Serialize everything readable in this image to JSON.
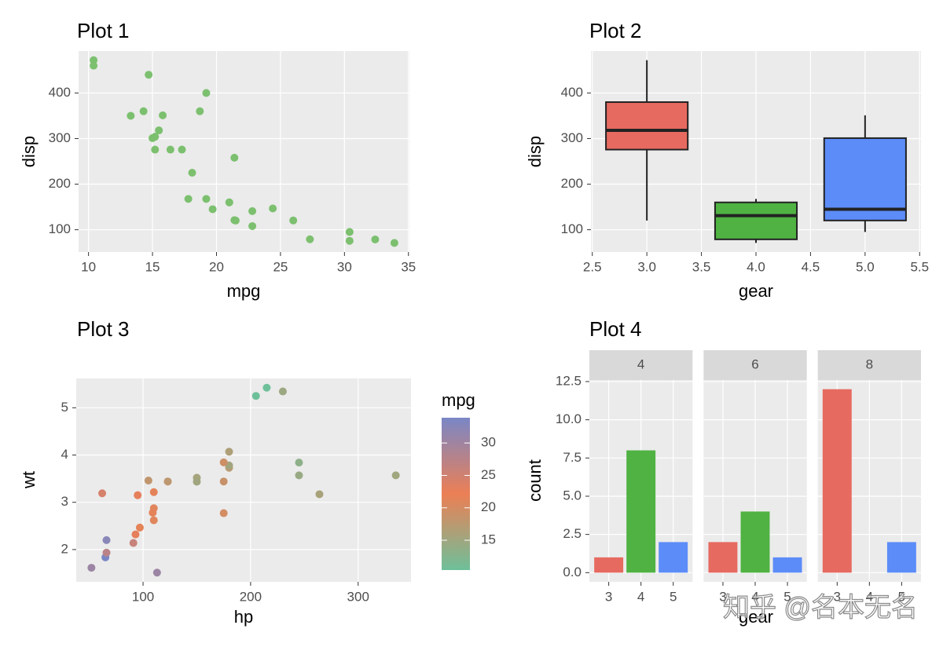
{
  "chart_data": [
    {
      "type": "scatter",
      "title": "Plot 1",
      "x_label": "mpg",
      "y_label": "disp",
      "color": "#7cc06f",
      "x": [
        21,
        21,
        22.8,
        21.4,
        18.7,
        18.1,
        14.3,
        24.4,
        22.8,
        19.2,
        17.8,
        16.4,
        17.3,
        15.2,
        10.4,
        10.4,
        14.7,
        32.4,
        30.4,
        33.9,
        21.5,
        15.5,
        15.2,
        13.3,
        19.2,
        27.3,
        26,
        30.4,
        15.8,
        19.7,
        15,
        21.4
      ],
      "y": [
        160,
        160,
        108,
        258,
        360,
        225,
        360,
        146.7,
        140.8,
        167.6,
        167.6,
        275.8,
        275.8,
        275.8,
        472,
        460,
        440,
        78.7,
        75.7,
        71.1,
        120.1,
        318,
        304,
        350,
        400,
        79,
        120.3,
        95.1,
        351,
        145,
        301,
        121
      ],
      "xlim": [
        9.225,
        35.075
      ],
      "xticks": [
        10,
        15,
        20,
        25,
        30,
        35
      ],
      "ylim": [
        51.05,
        492.05
      ],
      "yticks": [
        100,
        200,
        300,
        400
      ],
      "grid": true
    },
    {
      "type": "box",
      "title": "Plot 2",
      "x_label": "gear",
      "y_label": "disp",
      "x": [
        3,
        4,
        5
      ],
      "colors": [
        "#e66a60",
        "#4fb242",
        "#5c8cf8"
      ],
      "min": [
        120.1,
        71.1,
        95.1
      ],
      "q1": [
        275.8,
        78.925,
        120.3
      ],
      "median": [
        318,
        130.9,
        145
      ],
      "q3": [
        380,
        160,
        301
      ],
      "max": [
        472,
        167.6,
        351
      ],
      "xlim": [
        2.4875,
        5.5125
      ],
      "xticks": [
        {
          "value": 2.5,
          "label": "2.5"
        },
        {
          "value": 3,
          "label": "3.0"
        },
        {
          "value": 3.5,
          "label": "3.5"
        },
        {
          "value": 4,
          "label": "4.0"
        },
        {
          "value": 4.5,
          "label": "4.5"
        },
        {
          "value": 5,
          "label": "5.0"
        },
        {
          "value": 5.5,
          "label": "5.5"
        }
      ],
      "ylim": [
        51.05,
        492.05
      ],
      "yticks": [
        100,
        200,
        300,
        400
      ],
      "grid": true
    },
    {
      "type": "scatter",
      "title": "Plot 3",
      "x_label": "hp",
      "y_label": "wt",
      "color_label": "mpg",
      "x": [
        110,
        110,
        93,
        110,
        175,
        105,
        245,
        62,
        95,
        123,
        123,
        180,
        180,
        180,
        205,
        215,
        230,
        66,
        52,
        65,
        97,
        150,
        150,
        245,
        175,
        66,
        91,
        113,
        264,
        175,
        335,
        109
      ],
      "y": [
        2.62,
        2.875,
        2.32,
        3.215,
        3.44,
        3.46,
        3.57,
        3.19,
        3.15,
        3.44,
        3.44,
        4.07,
        3.73,
        3.78,
        5.25,
        5.424,
        5.345,
        2.2,
        1.615,
        1.835,
        2.465,
        3.52,
        3.435,
        3.84,
        3.845,
        1.935,
        2.14,
        1.513,
        3.17,
        2.77,
        3.57,
        2.78
      ],
      "color_values": [
        21,
        21,
        22.8,
        21.4,
        18.7,
        18.1,
        14.3,
        24.4,
        22.8,
        19.2,
        17.8,
        16.4,
        17.3,
        15.2,
        10.4,
        10.4,
        14.7,
        32.4,
        30.4,
        33.9,
        21.5,
        15.5,
        15.2,
        13.3,
        19.2,
        27.3,
        26,
        30.4,
        15.8,
        19.7,
        15,
        21.4
      ],
      "colorscale": [
        "#6ec09a",
        "#ec7f55",
        "#7a87c6"
      ],
      "clim": [
        10.4,
        33.9
      ],
      "cticks": [
        15,
        20,
        25,
        30
      ],
      "xlim": [
        37.85,
        349.15
      ],
      "xticks": [
        100,
        200,
        300
      ],
      "ylim": [
        1.31745,
        5.61955
      ],
      "yticks": [
        2,
        3,
        4,
        5
      ],
      "grid": true
    },
    {
      "type": "bar",
      "title": "Plot 4",
      "x_label": "gear",
      "y_label": "count",
      "facets": [
        "4",
        "6",
        "8"
      ],
      "categories": [
        "3",
        "4",
        "5"
      ],
      "colors": [
        "#e66a60",
        "#4fb242",
        "#5c8cf8"
      ],
      "facet_values": [
        [
          1,
          8,
          2
        ],
        [
          2,
          4,
          1
        ],
        [
          12,
          0,
          2
        ]
      ],
      "ylim": [
        -0.6,
        12.6
      ],
      "yticks": [
        {
          "value": 0,
          "label": "0.0"
        },
        2.5,
        {
          "value": 5,
          "label": "5.0"
        },
        7.5,
        {
          "value": 10,
          "label": "10.0"
        },
        12.5
      ],
      "grid": true
    }
  ],
  "watermark": "知乎 @名本无名"
}
